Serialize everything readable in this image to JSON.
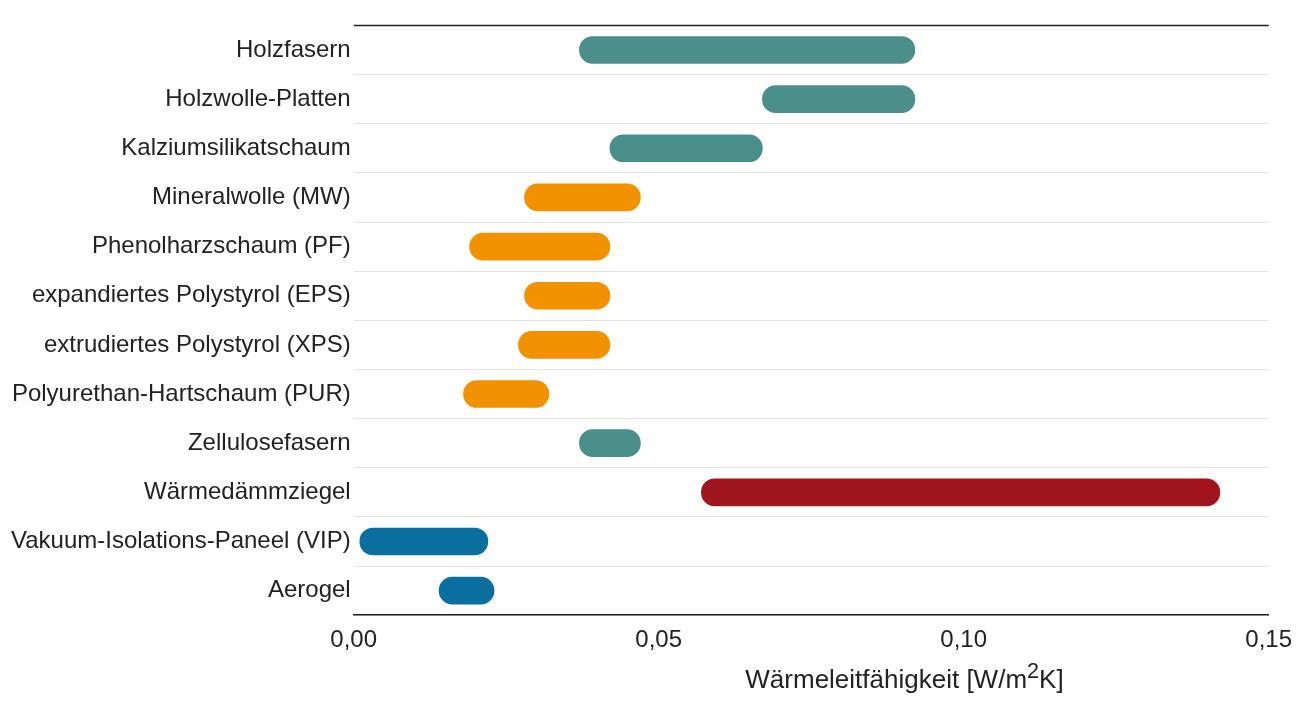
{
  "chart_data": {
    "type": "bar",
    "orientation": "horizontal",
    "xlabel": "Wärmeleitfähigkeit [W/m$^{2}$K]",
    "categories": [
      "Holzfasern",
      "Holzwolle-Platten",
      "Kalziumsilikatschaum",
      "Mineralwolle (MW)",
      "Phenolharzschaum (PF)",
      "expandiertes Polystyrol (EPS)",
      "extrudiertes Polystyrol (XPS)",
      "Polyurethan-Hartschaum (PUR)",
      "Zellulosefasern",
      "Wärmedämmziegel",
      "Vakuum-Isolations-Paneel (VIP)",
      "Aerogel"
    ],
    "base": [
      0.037,
      0.067,
      0.042,
      0.028,
      0.019,
      0.028,
      0.027,
      0.018,
      0.037,
      0.057,
      0.001,
      0.014
    ],
    "values": [
      0.055,
      0.025,
      0.025,
      0.019,
      0.023,
      0.014,
      0.015,
      0.014,
      0.01,
      0.085,
      0.021,
      0.009
    ],
    "colors": [
      "#4a8f8a",
      "#4a8f8a",
      "#4a8f8a",
      "#f39200",
      "#f39200",
      "#f39200",
      "#f39200",
      "#f39200",
      "#4a8f8a",
      "#a0141e",
      "#0a6e9e",
      "#0a6e9e"
    ],
    "xlim": [
      0,
      0.15
    ],
    "xticks": [
      {
        "value": 0,
        "label": "0,00"
      },
      {
        "value": 0.05,
        "label": "0,05"
      },
      {
        "value": 0.1,
        "label": "0,10"
      },
      {
        "value": 0.15,
        "label": "0,15"
      }
    ],
    "grid": "y"
  }
}
